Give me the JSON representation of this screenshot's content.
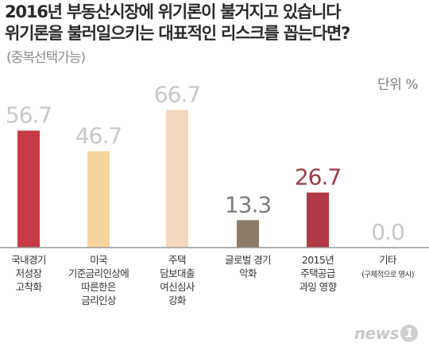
{
  "header": {
    "title_line1": "2016년 부동산시장에 위기론이 불거지고 있습니다",
    "title_line2": "위기론을 불러일으키는 대표적인 리스크를 꼽는다면?",
    "subtitle": "(중복선택가능)",
    "unit": "단위 %"
  },
  "chart_data": {
    "type": "bar",
    "title": "2016년 부동산시장에 위기론이 불거지고 있습니다 위기론을 불러일으키는 대표적인 리스크를 꼽는다면?",
    "subtitle": "(중복선택가능)",
    "ylabel": "단위 %",
    "xlabel": "",
    "ylim": [
      0,
      70
    ],
    "grid": false,
    "categories": [
      [
        "국내경기",
        "저성장",
        "고착화"
      ],
      [
        "미국",
        "기준금리인상에",
        "따른한은",
        "금리인상"
      ],
      [
        "주택",
        "담보대출",
        "여신심사",
        "강화"
      ],
      [
        "글로벌 경기",
        "악화"
      ],
      [
        "2015년",
        "주택공급",
        "과잉 영향"
      ],
      [
        "기타",
        "(구체적으로 명시)"
      ]
    ],
    "values": [
      56.7,
      46.7,
      66.7,
      13.3,
      26.7,
      0.0
    ],
    "value_labels": [
      "56.7",
      "46.7",
      "66.7",
      "13.3",
      "26.7",
      "0.0"
    ],
    "colors": [
      "#c73b47",
      "#f7d49c",
      "#f3d8bd",
      "#8d7b6a",
      "#b03946",
      "#c9c9c9"
    ],
    "label_colors": [
      "#c8c8c8",
      "#c8c8c8",
      "#c8c8c8",
      "#7c7c7c",
      "#9c3a44",
      "#c8c8c8"
    ]
  },
  "footer": {
    "logo_text": "news",
    "logo_badge": "1"
  }
}
